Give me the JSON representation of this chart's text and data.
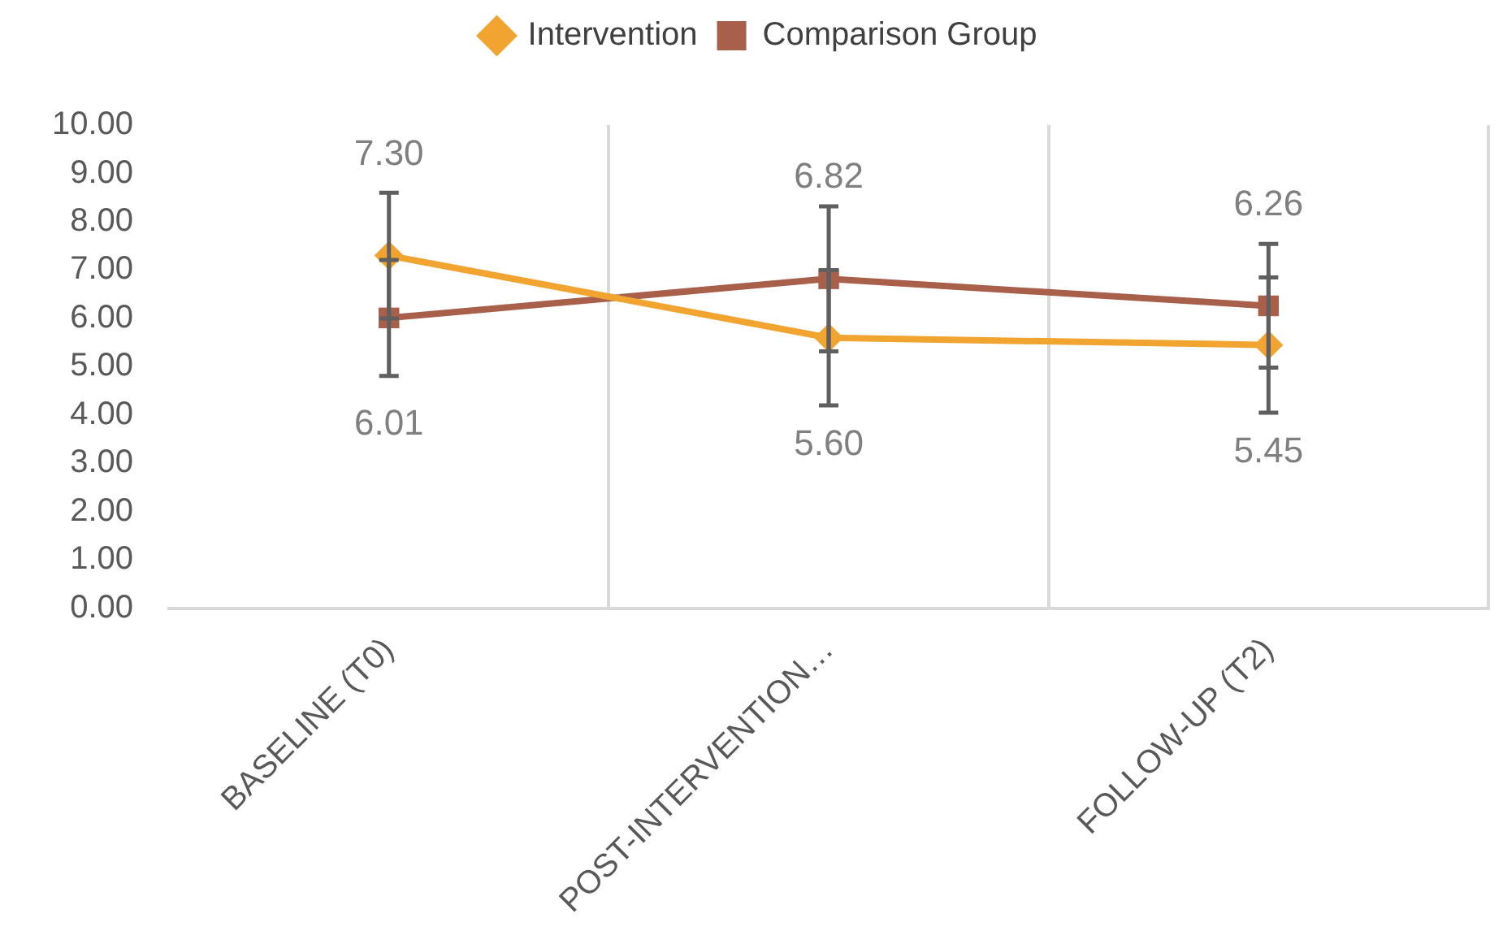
{
  "chart_data": {
    "type": "line",
    "categories": [
      "BASELINE (T0)",
      "POST-INTERVENTION…",
      "FOLLOW-UP (T2)"
    ],
    "series": [
      {
        "name": "Intervention",
        "color": "#f2a431",
        "marker": "diamond",
        "values": [
          7.3,
          5.6,
          5.45
        ],
        "value_labels": [
          "7.30",
          "5.60",
          "5.45"
        ],
        "errors": [
          1.3,
          1.4,
          1.4
        ]
      },
      {
        "name": "Comparison Group",
        "color": "#a9604b",
        "marker": "square",
        "values": [
          6.01,
          6.82,
          6.26
        ],
        "value_labels": [
          "6.01",
          "6.82",
          "6.26"
        ],
        "errors": [
          1.2,
          1.5,
          1.28
        ]
      }
    ],
    "ylim": [
      0,
      10
    ],
    "yticks": [
      {
        "value": 0,
        "label": "0.00"
      },
      {
        "value": 1,
        "label": "1.00"
      },
      {
        "value": 2,
        "label": "2.00"
      },
      {
        "value": 3,
        "label": "3.00"
      },
      {
        "value": 4,
        "label": "4.00"
      },
      {
        "value": 5,
        "label": "5.00"
      },
      {
        "value": 6,
        "label": "6.00"
      },
      {
        "value": 7,
        "label": "7.00"
      },
      {
        "value": 8,
        "label": "8.00"
      },
      {
        "value": 9,
        "label": "9.00"
      },
      {
        "value": 10,
        "label": "10.00"
      }
    ],
    "grid": "x",
    "legend": "top",
    "line_style": "solid"
  }
}
